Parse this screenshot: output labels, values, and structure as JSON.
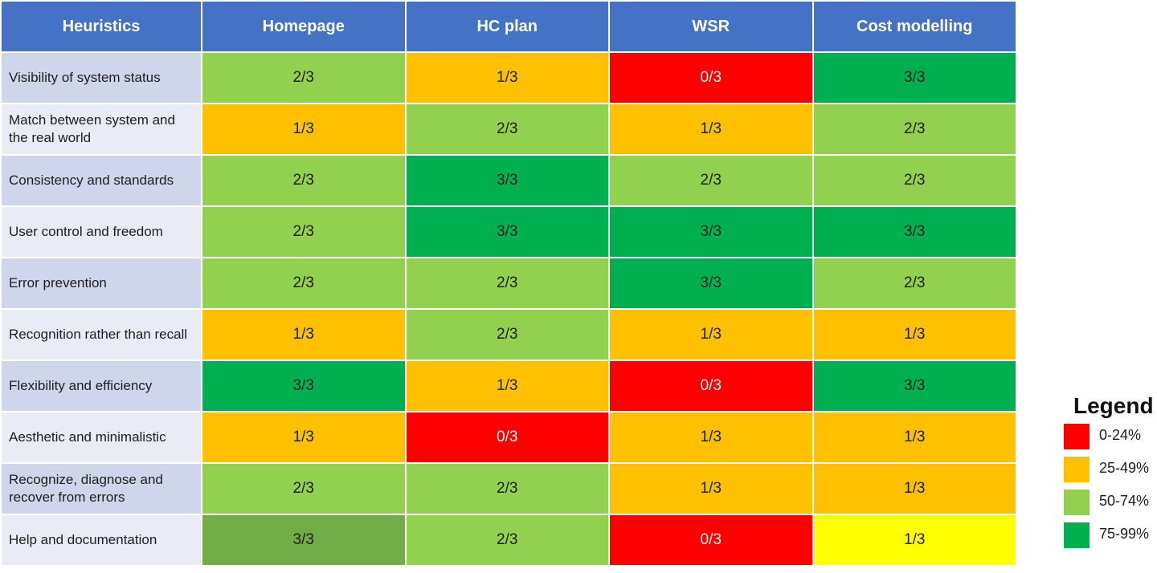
{
  "table": {
    "header_label": "Heuristics",
    "columns": [
      "Homepage",
      "HC plan",
      "WSR",
      "Cost modelling"
    ],
    "rows": [
      {
        "label": "Visibility of system status",
        "scores": [
          "2/3",
          "1/3",
          "0/3",
          "3/3"
        ],
        "colors": [
          "#92d050",
          "#ffc000",
          "#ff0000",
          "#00b050"
        ]
      },
      {
        "label": "Match between system and the real world",
        "scores": [
          "1/3",
          "2/3",
          "1/3",
          "2/3"
        ],
        "colors": [
          "#ffc000",
          "#92d050",
          "#ffc000",
          "#92d050"
        ]
      },
      {
        "label": "Consistency and standards",
        "scores": [
          "2/3",
          "3/3",
          "2/3",
          "2/3"
        ],
        "colors": [
          "#92d050",
          "#00b050",
          "#92d050",
          "#92d050"
        ]
      },
      {
        "label": "User control and freedom",
        "scores": [
          "2/3",
          "3/3",
          "3/3",
          "3/3"
        ],
        "colors": [
          "#92d050",
          "#00b050",
          "#00b050",
          "#00b050"
        ]
      },
      {
        "label": "Error prevention",
        "scores": [
          "2/3",
          "2/3",
          "3/3",
          "2/3"
        ],
        "colors": [
          "#92d050",
          "#92d050",
          "#00b050",
          "#92d050"
        ]
      },
      {
        "label": "Recognition rather than recall",
        "scores": [
          "1/3",
          "2/3",
          "1/3",
          "1/3"
        ],
        "colors": [
          "#ffc000",
          "#92d050",
          "#ffc000",
          "#ffc000"
        ]
      },
      {
        "label": "Flexibility and efficiency",
        "scores": [
          "3/3",
          "1/3",
          "0/3",
          "3/3"
        ],
        "colors": [
          "#00b050",
          "#ffc000",
          "#ff0000",
          "#00b050"
        ]
      },
      {
        "label": "Aesthetic and minimalistic",
        "scores": [
          "1/3",
          "0/3",
          "1/3",
          "1/3"
        ],
        "colors": [
          "#ffc000",
          "#ff0000",
          "#ffc000",
          "#ffc000"
        ]
      },
      {
        "label": "Recognize, diagnose and recover from errors",
        "scores": [
          "2/3",
          "2/3",
          "1/3",
          "1/3"
        ],
        "colors": [
          "#92d050",
          "#92d050",
          "#ffc000",
          "#ffc000"
        ]
      },
      {
        "label": "Help and documentation",
        "scores": [
          "3/3",
          "2/3",
          "0/3",
          "1/3"
        ],
        "colors": [
          "#70ad47",
          "#92d050",
          "#ff0000",
          "#ffff00"
        ]
      }
    ],
    "row_label_colors": [
      "#cfd5ea",
      "#e9ebf5"
    ]
  },
  "legend": {
    "title": "Legend",
    "items": [
      {
        "label": "0-24%",
        "color": "#ff0000"
      },
      {
        "label": "25-49%",
        "color": "#ffc000"
      },
      {
        "label": "50-74%",
        "color": "#92d050"
      },
      {
        "label": "75-99%",
        "color": "#00b050"
      }
    ]
  },
  "chart_data": {
    "type": "heatmap",
    "title": "",
    "x": [
      "Homepage",
      "HC plan",
      "WSR",
      "Cost modelling"
    ],
    "y": [
      "Visibility of system status",
      "Match between system and the real world",
      "Consistency and standards",
      "User control and freedom",
      "Error prevention",
      "Recognition rather than recall",
      "Flexibility and efficiency",
      "Aesthetic and minimalistic",
      "Recognize, diagnose and recover from errors",
      "Help and documentation"
    ],
    "values": [
      [
        2,
        1,
        0,
        3
      ],
      [
        1,
        2,
        1,
        2
      ],
      [
        2,
        3,
        2,
        2
      ],
      [
        2,
        3,
        3,
        3
      ],
      [
        2,
        2,
        3,
        2
      ],
      [
        1,
        2,
        1,
        1
      ],
      [
        3,
        1,
        0,
        3
      ],
      [
        1,
        0,
        1,
        1
      ],
      [
        2,
        2,
        1,
        1
      ],
      [
        3,
        2,
        0,
        1
      ]
    ],
    "max": 3,
    "legend": "right"
  }
}
